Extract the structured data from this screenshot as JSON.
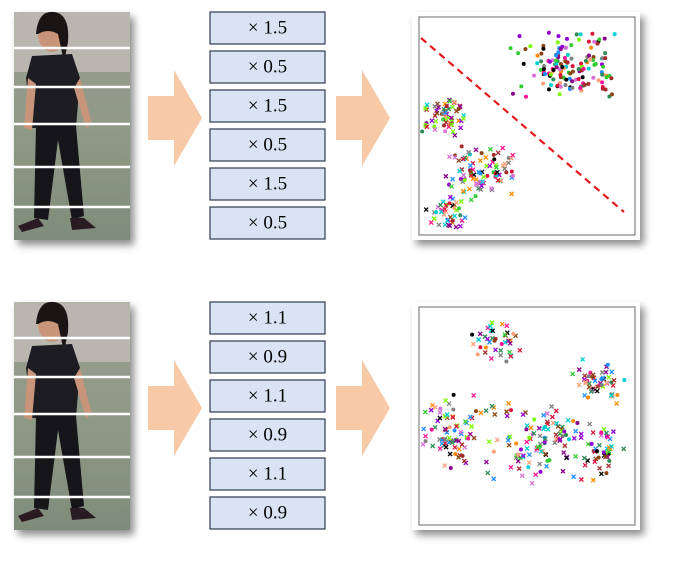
{
  "rows": [
    {
      "multipliers": [
        "× 1.5",
        "× 0.5",
        "× 1.5",
        "× 0.5",
        "× 1.5",
        "× 0.5"
      ]
    },
    {
      "multipliers": [
        "× 1.1",
        "× 0.9",
        "× 1.1",
        "× 0.9",
        "× 1.1",
        "× 0.9"
      ]
    }
  ]
}
